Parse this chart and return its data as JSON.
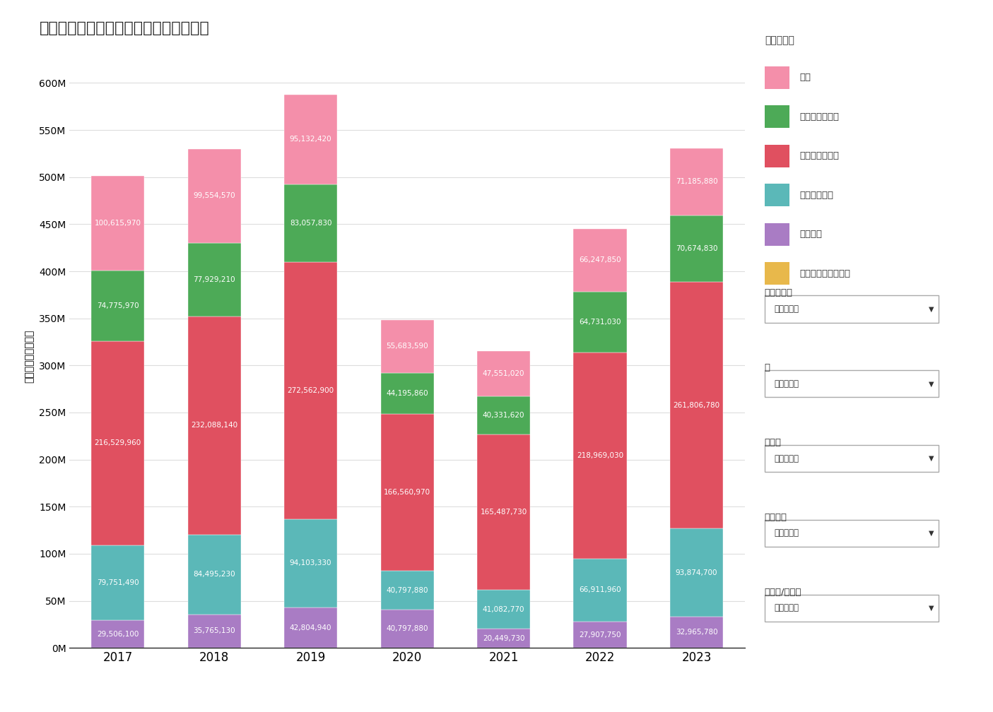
{
  "title": "延べ宿泊者数の推移：宿泊施設タイプ別",
  "ylabel": "延べ宿泊者数（人）",
  "years": [
    2017,
    2018,
    2019,
    2020,
    2021,
    2022,
    2023
  ],
  "categories": [
    "会社・団体の宿泊所",
    "簡易宿所",
    "シティホテル",
    "ビジネスホテル",
    "リゾートホテル",
    "旅館"
  ],
  "colors": [
    "#E8B84B",
    "#A97CC4",
    "#5BB8B8",
    "#E05060",
    "#4DAA57",
    "#F48FAA"
  ],
  "data": {
    "会社・団体の宿泊所": [
      0,
      0,
      0,
      0,
      0,
      0,
      0
    ],
    "簡易宿所": [
      29506100,
      35765130,
      42804940,
      40797880,
      20449730,
      27907750,
      32965780
    ],
    "シティホテル": [
      79751490,
      84495230,
      94103330,
      40797880,
      41082770,
      66911960,
      93874700
    ],
    "ビジネスホテル": [
      216529960,
      232088140,
      272562900,
      166560970,
      165487730,
      218969030,
      261806780
    ],
    "リゾートホテル": [
      74775970,
      77929210,
      83057830,
      44195860,
      40331620,
      64731030,
      70674830
    ],
    "旅館": [
      100615970,
      99554570,
      95132420,
      55683590,
      47551020,
      66247850,
      71185880
    ]
  },
  "legend_title": "施設タイプ",
  "legend_items": [
    "旅館",
    "リゾートホテル",
    "ビジネスホテル",
    "シティホテル",
    "簡易宿所",
    "会社・団体の宿泊所"
  ],
  "legend_colors": [
    "#F48FAA",
    "#4DAA57",
    "#E05060",
    "#5BB8B8",
    "#A97CC4",
    "#E8B84B"
  ],
  "sidebar_labels": [
    "施設タイプ",
    "月",
    "エリア",
    "都道府県",
    "日本人/外国人"
  ],
  "sidebar_dropdowns": [
    "（すべて）",
    "（すべて）",
    "（すべて）",
    "（すべて）",
    "（すべて）"
  ],
  "ylim": [
    0,
    620000000
  ],
  "yticks": [
    0,
    50000000,
    100000000,
    150000000,
    200000000,
    250000000,
    300000000,
    350000000,
    400000000,
    450000000,
    500000000,
    550000000,
    600000000
  ],
  "ytick_labels": [
    "0M",
    "50M",
    "100M",
    "150M",
    "200M",
    "250M",
    "300M",
    "350M",
    "400M",
    "450M",
    "500M",
    "550M",
    "600M"
  ],
  "background_color": "#FFFFFF",
  "bar_width": 0.55
}
